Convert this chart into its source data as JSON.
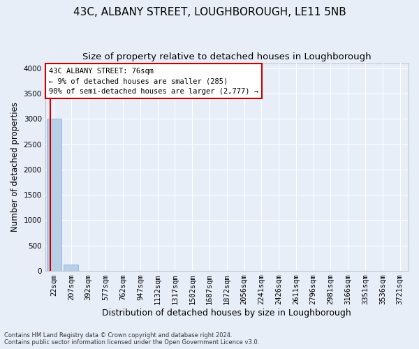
{
  "title": "43C, ALBANY STREET, LOUGHBOROUGH, LE11 5NB",
  "subtitle": "Size of property relative to detached houses in Loughborough",
  "xlabel": "Distribution of detached houses by size in Loughborough",
  "ylabel": "Number of detached properties",
  "bar_labels": [
    "22sqm",
    "207sqm",
    "392sqm",
    "577sqm",
    "762sqm",
    "947sqm",
    "1132sqm",
    "1317sqm",
    "1502sqm",
    "1687sqm",
    "1872sqm",
    "2056sqm",
    "2241sqm",
    "2426sqm",
    "2611sqm",
    "2796sqm",
    "2981sqm",
    "3166sqm",
    "3351sqm",
    "3536sqm",
    "3721sqm"
  ],
  "bar_values": [
    3000,
    115,
    0,
    0,
    0,
    0,
    0,
    0,
    0,
    0,
    0,
    0,
    0,
    0,
    0,
    0,
    0,
    0,
    0,
    0,
    0
  ],
  "bar_color": "#b8cfe8",
  "bar_edge_color": "#7aadd4",
  "ylim": [
    0,
    4100
  ],
  "yticks": [
    0,
    500,
    1000,
    1500,
    2000,
    2500,
    3000,
    3500,
    4000
  ],
  "property_line_color": "#cc0000",
  "annotation_text": "43C ALBANY STREET: 76sqm\n← 9% of detached houses are smaller (285)\n90% of semi-detached houses are larger (2,777) →",
  "annotation_box_color": "#cc0000",
  "footer_line1": "Contains HM Land Registry data © Crown copyright and database right 2024.",
  "footer_line2": "Contains public sector information licensed under the Open Government Licence v3.0.",
  "bg_color": "#e8eef8",
  "plot_bg_color": "#e8eef8",
  "grid_color": "#ffffff",
  "title_fontsize": 11,
  "subtitle_fontsize": 9.5,
  "axis_label_fontsize": 8.5,
  "tick_fontsize": 7.5,
  "annotation_fontsize": 7.5
}
